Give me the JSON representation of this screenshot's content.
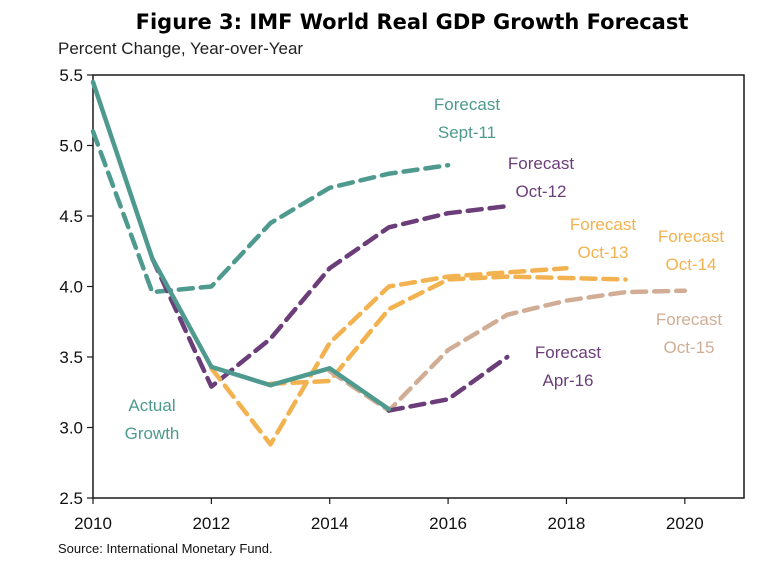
{
  "chart_data": {
    "type": "line",
    "title": "Figure 3: IMF World Real GDP Growth Forecast",
    "subtitle": "Percent Change, Year-over-Year",
    "source": "Source: International Monetary Fund.",
    "xlim": [
      2010,
      2021
    ],
    "ylim": [
      2.5,
      5.5
    ],
    "x_ticks": [
      2010,
      2012,
      2014,
      2016,
      2018,
      2020
    ],
    "x_tick_labels": [
      "2010",
      "2012",
      "2014",
      "2016",
      "2018",
      "2020"
    ],
    "y_ticks": [
      2.5,
      3.0,
      3.5,
      4.0,
      4.5,
      5.0,
      5.5
    ],
    "y_tick_labels": [
      "2.5",
      "3.0",
      "3.5",
      "4.0",
      "4.5",
      "5.0",
      "5.5"
    ],
    "grid": false,
    "series": [
      {
        "name": "Actual Growth",
        "label_lines": [
          "Actual",
          "Growth"
        ],
        "color": "#4e9a8e",
        "style": "solid",
        "x": [
          2010,
          2011,
          2012,
          2013,
          2014,
          2015
        ],
        "y": [
          5.45,
          4.2,
          3.43,
          3.3,
          3.42,
          3.13
        ]
      },
      {
        "name": "Forecast Sept-11",
        "label_lines": [
          "Forecast",
          "Sept-11"
        ],
        "color": "#4e9a8e",
        "style": "dashed",
        "x": [
          2010,
          2011,
          2012,
          2013,
          2014,
          2015,
          2016
        ],
        "y": [
          5.1,
          3.96,
          4.0,
          4.45,
          4.7,
          4.8,
          4.86
        ]
      },
      {
        "name": "Forecast Oct-12",
        "label_lines": [
          "Forecast",
          "Oct-12"
        ],
        "color": "#6b3d79",
        "style": "dashed",
        "x": [
          2011,
          2012,
          2013,
          2014,
          2015,
          2016,
          2017
        ],
        "y": [
          4.2,
          3.29,
          3.63,
          4.13,
          4.42,
          4.52,
          4.57
        ]
      },
      {
        "name": "Forecast Oct-13",
        "label_lines": [
          "Forecast",
          "Oct-13"
        ],
        "color": "#f2b24f",
        "style": "dashed",
        "x": [
          2012,
          2013,
          2014,
          2015,
          2016,
          2017,
          2018
        ],
        "y": [
          3.42,
          2.88,
          3.6,
          4.0,
          4.07,
          4.1,
          4.13
        ]
      },
      {
        "name": "Forecast Oct-14",
        "label_lines": [
          "Forecast",
          "Oct-14"
        ],
        "color": "#f2b24f",
        "style": "dashed",
        "x": [
          2013,
          2014,
          2015,
          2016,
          2017,
          2018,
          2019
        ],
        "y": [
          3.31,
          3.33,
          3.84,
          4.05,
          4.07,
          4.06,
          4.05
        ]
      },
      {
        "name": "Forecast Oct-15",
        "label_lines": [
          "Forecast",
          "Oct-15"
        ],
        "color": "#d2ad95",
        "style": "dashed",
        "x": [
          2014,
          2015,
          2016,
          2017,
          2018,
          2019,
          2020
        ],
        "y": [
          3.4,
          3.12,
          3.55,
          3.8,
          3.9,
          3.96,
          3.97
        ]
      },
      {
        "name": "Forecast Apr-16",
        "label_lines": [
          "Forecast",
          "Apr-16"
        ],
        "color": "#6b3d79",
        "style": "dashed",
        "x": [
          2015,
          2016,
          2017
        ],
        "y": [
          3.12,
          3.2,
          3.5
        ]
      }
    ]
  }
}
